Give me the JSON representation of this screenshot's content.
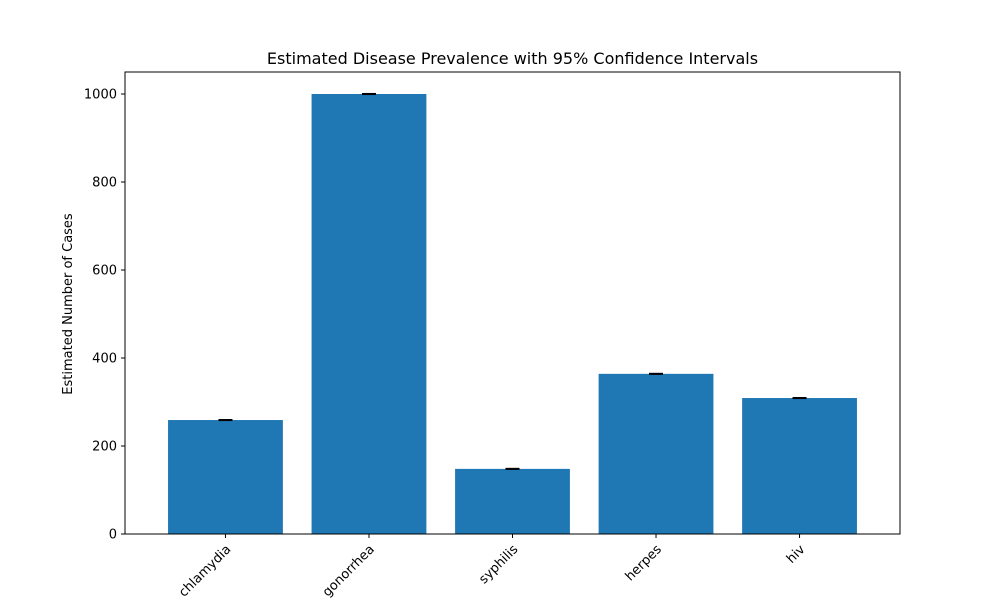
{
  "chart_data": {
    "type": "bar",
    "title": "Estimated Disease Prevalence with 95% Confidence Intervals",
    "xlabel": "",
    "ylabel": "Estimated Number of Cases",
    "categories": [
      "chlamydia",
      "gonorrhea",
      "syphilis",
      "herpes",
      "hiv"
    ],
    "values": [
      259,
      1000,
      148,
      364,
      309
    ],
    "error": [
      1,
      1,
      1,
      1,
      1
    ],
    "ylim": [
      0,
      1050
    ],
    "yticks": [
      0,
      200,
      400,
      600,
      800,
      1000
    ],
    "grid": false,
    "legend": "none",
    "bar_color": "#1f77b4",
    "error_color": "#000000"
  }
}
